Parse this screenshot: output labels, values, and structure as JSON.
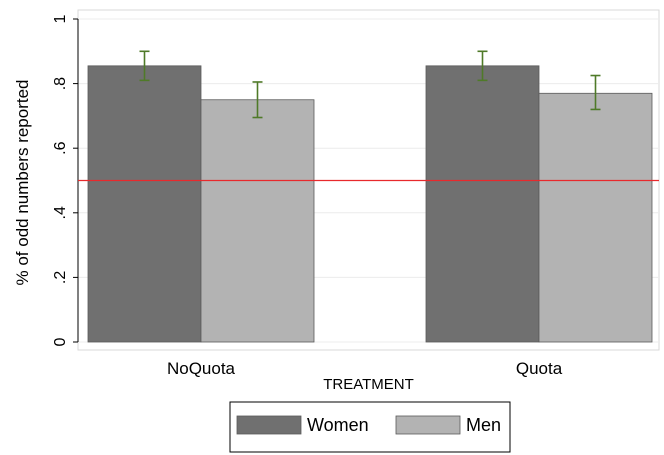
{
  "chart_data": {
    "type": "bar",
    "categories": [
      "NoQuota",
      "Quota"
    ],
    "series": [
      {
        "name": "Women",
        "values": [
          0.855,
          0.855
        ],
        "ci_low": [
          0.81,
          0.81
        ],
        "ci_high": [
          0.9,
          0.9
        ],
        "color": "#707070"
      },
      {
        "name": "Men",
        "values": [
          0.75,
          0.77
        ],
        "ci_low": [
          0.695,
          0.72
        ],
        "ci_high": [
          0.805,
          0.825
        ],
        "color": "#b3b3b3"
      }
    ],
    "xlabel": "TREATMENT",
    "ylabel": "% of odd numbers reported",
    "ylim": [
      0,
      1
    ],
    "yticks": [
      0,
      0.2,
      0.4,
      0.6,
      0.8,
      1
    ],
    "ytick_labels": [
      "0",
      ".2",
      ".4",
      ".6",
      ".8",
      "1"
    ],
    "reference_line": {
      "y": 0.5,
      "color": "#e8292c"
    },
    "errorbar_color": "#4f7a28",
    "grid": true,
    "legend_position": "bottom-center"
  }
}
